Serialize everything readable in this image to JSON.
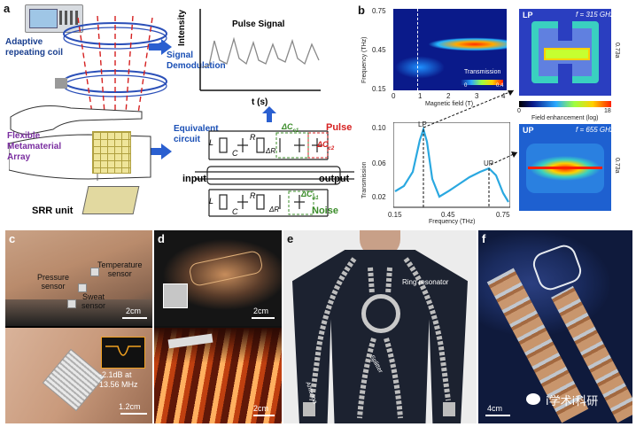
{
  "panel_labels": {
    "a": "a",
    "b": "b",
    "c": "c",
    "d": "d",
    "e": "e",
    "f": "f"
  },
  "panel_a": {
    "coil_label": "Adaptive\nrepeating coil",
    "signal_demod": "Signal\nDemodulation",
    "equivalent_circuit": "Equivalent\ncircuit",
    "flexible_array": "Flexible\nMetamaterial\nArray",
    "srr_unit": "SRR unit",
    "pulse_signal": "Pulse Signal",
    "intensity": "Intensity",
    "time_axis": "t (s)",
    "pulse": "Pulse",
    "noise": "Noise",
    "input": "input",
    "output": "output",
    "dc_c1": "ΔC",
    "dc_c2": "ΔC",
    "dc_n": "ΔC",
    "c1_sub": "c1",
    "c2_sub": "c2",
    "n_sub": "n1",
    "L": "L",
    "C": "C",
    "R": "R",
    "dR": "ΔR",
    "Lb": "L",
    "Cb": "C",
    "Rb": "R",
    "dRb": "ΔR"
  },
  "panel_b": {
    "heat_ylabel": "Frequency (THz)",
    "heat_xlabel": "Magnetic field (T)",
    "heat_yticks": [
      "0.75",
      "0.45",
      "0.15"
    ],
    "heat_xticks": [
      "0",
      "1",
      "2",
      "3",
      "4"
    ],
    "transmission_label": "Transmission",
    "cbar_ticks": [
      "0",
      "0.4"
    ],
    "trans_ylabel": "Transmission",
    "trans_xlabel": "Frequency (THz)",
    "trans_yticks": [
      "0.10",
      "0.06",
      "0.02"
    ],
    "trans_xticks": [
      "0.15",
      "0.45",
      "0.75"
    ],
    "lp": "LP",
    "up": "UP",
    "lp_box_title": "LP",
    "lp_freq": "f = 315 GHz",
    "up_box_title": "UP",
    "up_freq": "f = 655 GHz",
    "side_label": "0.73a",
    "field_label": "Field enhancement (log)",
    "field_ticks": [
      "0",
      "18"
    ]
  },
  "panel_c": {
    "pressure": "Pressure\nsensor",
    "temperature": "Temperature\nsensor",
    "sweat": "Sweat\nsensor",
    "scale_top": "2cm",
    "db_text": "-2.1dB at\n13.56 MHz",
    "scale_bottom": "1.2cm"
  },
  "panel_d": {
    "scale_top": "2cm",
    "scale_bottom": "2cm"
  },
  "panel_e": {
    "ring": "Ring resonator",
    "splitter": "Splitter",
    "antenna": "Antenna"
  },
  "panel_f": {
    "scale": "4cm",
    "watermark": "i学术i科研"
  },
  "colors": {
    "blue_text": "#1a4fb5",
    "purple_text": "#7a2ea0",
    "green_text": "#3b8c2a",
    "red_text": "#d62020"
  }
}
